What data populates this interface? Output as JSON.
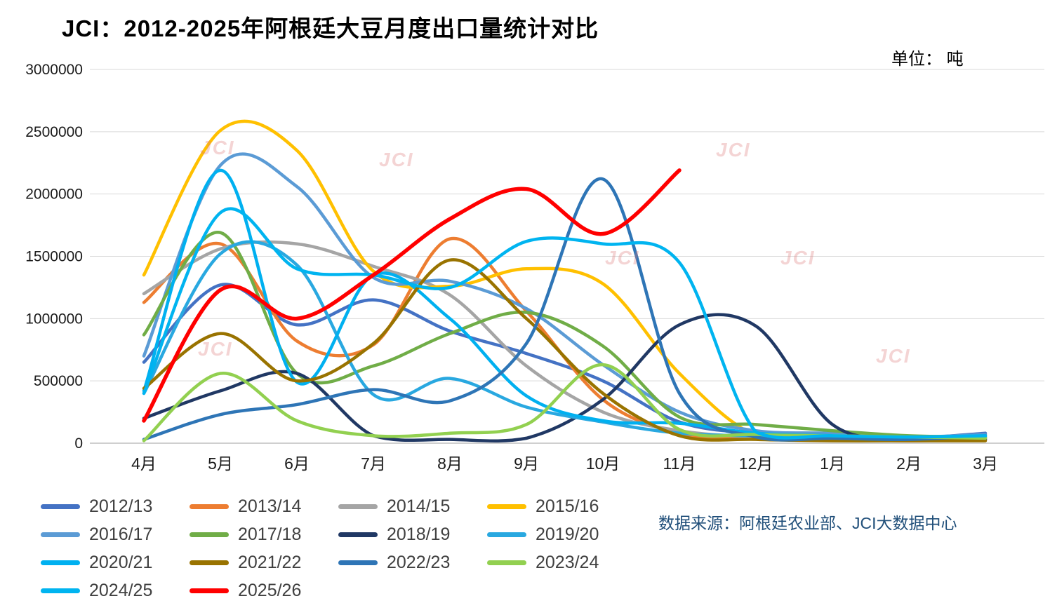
{
  "title": "JCI：2012-2025年阿根廷大豆月度出口量统计对比",
  "unit_label": "单位： 吨",
  "source": "数据来源：阿根廷农业部、JCI大数据中心",
  "watermark": "JCI",
  "chart_data": {
    "type": "line",
    "title": "JCI：2012-2025年阿根廷大豆月度出口量统计对比",
    "unit": "吨",
    "categories": [
      "4月",
      "5月",
      "6月",
      "7月",
      "8月",
      "9月",
      "10月",
      "11月",
      "12月",
      "1月",
      "2月",
      "3月"
    ],
    "ylim": [
      0,
      3000000
    ],
    "ytick_step": 500000,
    "grid": "horizontal",
    "legend_position": "bottom",
    "series": [
      {
        "name": "2012/13",
        "color": "#4472C4",
        "values": [
          650000,
          1270000,
          950000,
          1150000,
          900000,
          720000,
          500000,
          170000,
          80000,
          60000,
          40000,
          80000
        ]
      },
      {
        "name": "2013/14",
        "color": "#ED7D31",
        "values": [
          1130000,
          1600000,
          820000,
          790000,
          1640000,
          1060000,
          350000,
          80000,
          40000,
          30000,
          20000,
          30000
        ]
      },
      {
        "name": "2014/15",
        "color": "#A5A5A5",
        "values": [
          1200000,
          1560000,
          1600000,
          1420000,
          1190000,
          620000,
          250000,
          100000,
          50000,
          40000,
          30000,
          40000
        ]
      },
      {
        "name": "2015/16",
        "color": "#FFC000",
        "values": [
          1350000,
          2510000,
          2350000,
          1380000,
          1260000,
          1400000,
          1280000,
          560000,
          60000,
          40000,
          30000,
          40000
        ]
      },
      {
        "name": "2016/17",
        "color": "#5B9BD5",
        "values": [
          700000,
          2230000,
          2060000,
          1330000,
          1300000,
          1080000,
          630000,
          250000,
          100000,
          80000,
          50000,
          70000
        ]
      },
      {
        "name": "2017/18",
        "color": "#70AD47",
        "values": [
          870000,
          1690000,
          560000,
          620000,
          880000,
          1050000,
          780000,
          210000,
          150000,
          100000,
          60000,
          50000
        ]
      },
      {
        "name": "2018/19",
        "color": "#203864",
        "values": [
          200000,
          420000,
          560000,
          60000,
          30000,
          40000,
          350000,
          950000,
          940000,
          150000,
          40000,
          30000
        ]
      },
      {
        "name": "2019/20",
        "color": "#29A8E0",
        "values": [
          400000,
          1520000,
          1430000,
          390000,
          520000,
          290000,
          170000,
          80000,
          60000,
          60000,
          40000,
          50000
        ]
      },
      {
        "name": "2020/21",
        "color": "#00B0F0",
        "values": [
          420000,
          2190000,
          490000,
          1350000,
          1000000,
          380000,
          180000,
          160000,
          80000,
          60000,
          30000,
          40000
        ]
      },
      {
        "name": "2021/22",
        "color": "#997300",
        "values": [
          440000,
          880000,
          500000,
          800000,
          1470000,
          1000000,
          400000,
          60000,
          30000,
          20000,
          20000,
          20000
        ]
      },
      {
        "name": "2022/23",
        "color": "#2E75B6",
        "values": [
          30000,
          230000,
          310000,
          430000,
          340000,
          800000,
          2120000,
          400000,
          50000,
          40000,
          30000,
          60000
        ]
      },
      {
        "name": "2023/24",
        "color": "#92D050",
        "values": [
          20000,
          560000,
          180000,
          60000,
          80000,
          150000,
          630000,
          110000,
          70000,
          60000,
          50000,
          40000
        ]
      },
      {
        "name": "2024/25",
        "color": "#00B4F0",
        "values": [
          400000,
          1850000,
          1400000,
          1350000,
          1250000,
          1620000,
          1600000,
          1450000,
          90000,
          60000,
          50000,
          60000
        ]
      },
      {
        "name": "2025/26",
        "color": "#FF0000",
        "line_width": 5.5,
        "values": [
          180000,
          1230000,
          1000000,
          1350000,
          1800000,
          2040000,
          1680000,
          2190000,
          null,
          null,
          null,
          null
        ]
      }
    ]
  }
}
